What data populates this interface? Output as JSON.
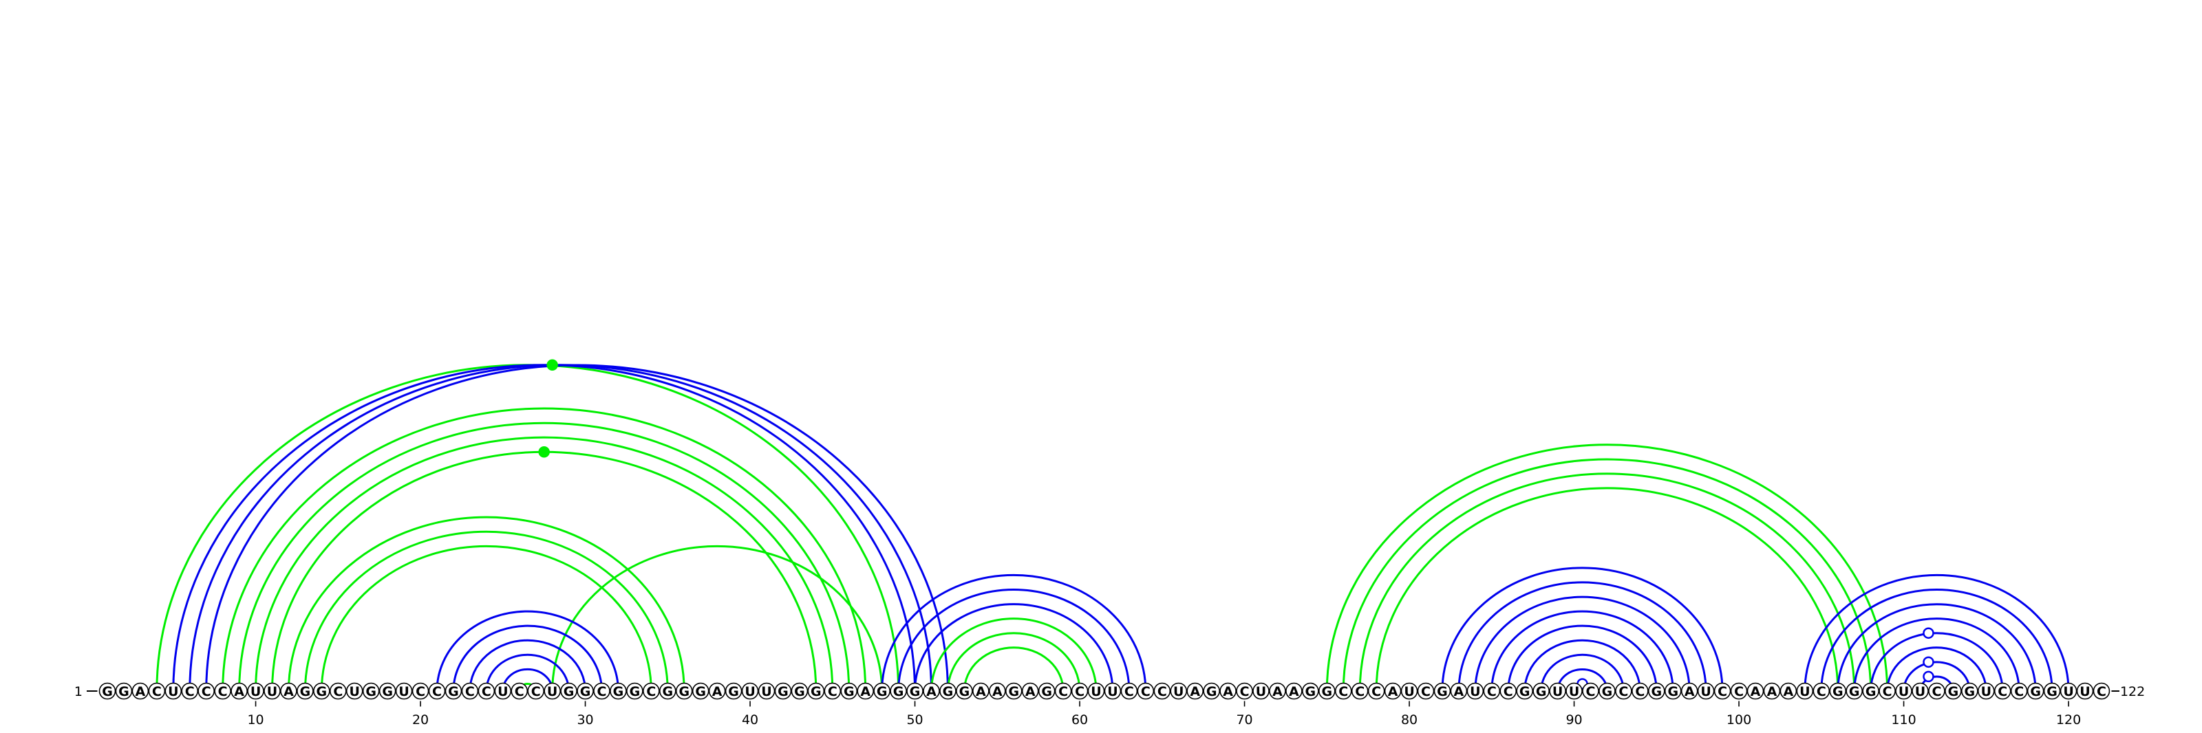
{
  "sequence": "GGACUCCCAUUAGGCUGGUCCGCCUCCUGGCGGCGGGAGUUGGGCGAGGGAGGAAGAGCCUUCCCUAGACUAAGGCCCAUCGAUCCGGUUCGCCGGAUCCAAAUCGGGCUUCGGUCCGGUUC",
  "start_label": "1",
  "end_label": "122",
  "tick_labels": [
    "10",
    "20",
    "30",
    "40",
    "50",
    "60",
    "70",
    "80",
    "90",
    "100",
    "110",
    "120"
  ],
  "colors": {
    "blue": "#0000ee",
    "green": "#00ee00",
    "nucleotide_fill": "#ffffff",
    "nucleotide_stroke": "#000000"
  },
  "arc_families": [
    {
      "color": "green",
      "pairs": [
        [
          4,
          49
        ],
        [
          48,
          28
        ]
      ]
    },
    {
      "color": "blue",
      "pairs": [
        [
          5,
          50
        ],
        [
          6,
          51
        ],
        [
          7,
          52
        ]
      ]
    },
    {
      "color": "green",
      "pairs": [
        [
          8,
          47
        ],
        [
          9,
          46
        ],
        [
          10,
          45
        ],
        [
          11,
          44
        ]
      ]
    },
    {
      "color": "green",
      "pairs": [
        [
          12,
          36
        ],
        [
          13,
          35
        ],
        [
          14,
          34
        ]
      ]
    },
    {
      "color": "blue",
      "pairs": [
        [
          21,
          32
        ],
        [
          22,
          31
        ],
        [
          23,
          30
        ],
        [
          24,
          29
        ],
        [
          25,
          28
        ]
      ]
    },
    {
      "color": "green",
      "pairs": [
        [
          26,
          27
        ]
      ]
    },
    {
      "color": "blue",
      "pairs": [
        [
          48,
          64
        ],
        [
          49,
          63
        ],
        [
          50,
          62
        ]
      ]
    },
    {
      "color": "green",
      "pairs": [
        [
          51,
          61
        ],
        [
          52,
          60
        ],
        [
          53,
          59
        ]
      ]
    },
    {
      "color": "green",
      "pairs": [
        [
          75,
          109
        ],
        [
          76,
          108
        ],
        [
          77,
          107
        ],
        [
          78,
          106
        ]
      ]
    },
    {
      "color": "blue",
      "pairs": [
        [
          82,
          99
        ],
        [
          83,
          98
        ],
        [
          84,
          97
        ],
        [
          85,
          96
        ],
        [
          86,
          95
        ],
        [
          87,
          94
        ],
        [
          88,
          93
        ],
        [
          89,
          92
        ],
        [
          90,
          91
        ]
      ]
    },
    {
      "color": "blue",
      "pairs": [
        [
          104,
          120
        ],
        [
          105,
          119
        ],
        [
          106,
          118
        ],
        [
          107,
          117
        ],
        [
          108,
          116
        ],
        [
          109,
          115
        ],
        [
          110,
          114
        ],
        [
          111,
          113
        ]
      ]
    }
  ],
  "markers": [
    {
      "position": 27.5,
      "color": "green",
      "filled": true,
      "level": 1
    },
    {
      "position": 28,
      "color": "green",
      "filled": true,
      "level": 5
    },
    {
      "position": 90.5,
      "color": "blue",
      "filled": false,
      "level": 1
    },
    {
      "position": 111.5,
      "color": "blue",
      "filled": false,
      "level": 1
    },
    {
      "position": 111.5,
      "color": "blue",
      "filled": false,
      "level": 2
    },
    {
      "position": 111.5,
      "color": "blue",
      "filled": false,
      "level": 4
    }
  ]
}
